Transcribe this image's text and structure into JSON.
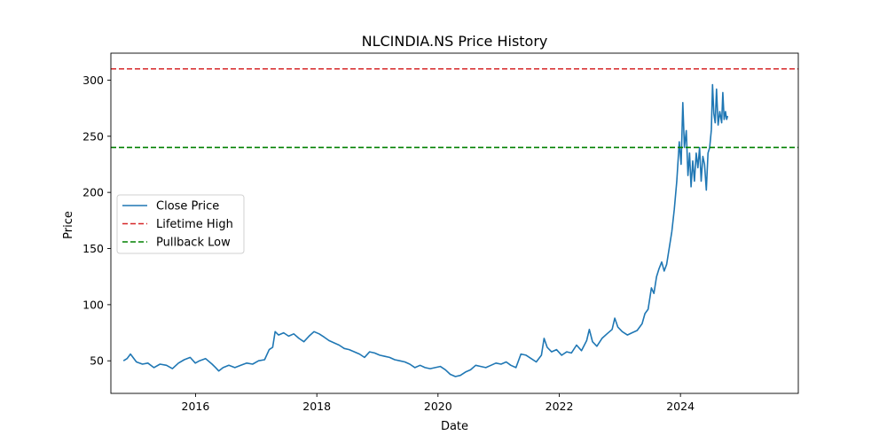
{
  "chart_data": {
    "type": "line",
    "title": "NLCINDIA.NS Price History",
    "xlabel": "Date",
    "ylabel": "Price",
    "xlim": [
      "2014-08-09",
      "2025-12-11"
    ],
    "ylim": [
      21,
      324
    ],
    "x_ticks": [
      "2016",
      "2018",
      "2020",
      "2022",
      "2024"
    ],
    "y_ticks": [
      50,
      100,
      150,
      200,
      250,
      300
    ],
    "grid": false,
    "legend_position": "center-left",
    "series": [
      {
        "name": "Close Price",
        "style": "solid",
        "color": "#1f77b4",
        "points": [
          [
            "2014-10-24",
            50
          ],
          [
            "2014-11-15",
            52
          ],
          [
            "2014-12-05",
            56
          ],
          [
            "2015-01-10",
            49
          ],
          [
            "2015-02-15",
            47
          ],
          [
            "2015-03-20",
            48
          ],
          [
            "2015-04-25",
            44
          ],
          [
            "2015-06-01",
            47
          ],
          [
            "2015-07-10",
            46
          ],
          [
            "2015-08-15",
            43
          ],
          [
            "2015-09-20",
            48
          ],
          [
            "2015-10-25",
            51
          ],
          [
            "2015-11-30",
            53
          ],
          [
            "2015-12-31",
            48
          ],
          [
            "2016-01-25",
            50
          ],
          [
            "2016-03-01",
            52
          ],
          [
            "2016-04-10",
            47
          ],
          [
            "2016-05-01",
            44
          ],
          [
            "2016-05-20",
            41
          ],
          [
            "2016-06-15",
            44
          ],
          [
            "2016-07-20",
            46
          ],
          [
            "2016-08-25",
            44
          ],
          [
            "2016-09-30",
            46
          ],
          [
            "2016-11-05",
            48
          ],
          [
            "2016-12-10",
            47
          ],
          [
            "2017-01-15",
            50
          ],
          [
            "2017-02-20",
            51
          ],
          [
            "2017-03-20",
            60
          ],
          [
            "2017-04-10",
            62
          ],
          [
            "2017-04-25",
            76
          ],
          [
            "2017-05-15",
            73
          ],
          [
            "2017-06-15",
            75
          ],
          [
            "2017-07-15",
            72
          ],
          [
            "2017-08-15",
            74
          ],
          [
            "2017-09-15",
            70
          ],
          [
            "2017-10-15",
            67
          ],
          [
            "2017-11-15",
            72
          ],
          [
            "2017-12-15",
            76
          ],
          [
            "2018-01-15",
            74
          ],
          [
            "2018-02-15",
            71
          ],
          [
            "2018-03-15",
            68
          ],
          [
            "2018-04-15",
            66
          ],
          [
            "2018-05-15",
            64
          ],
          [
            "2018-06-15",
            61
          ],
          [
            "2018-07-15",
            60
          ],
          [
            "2018-08-15",
            58
          ],
          [
            "2018-09-15",
            56
          ],
          [
            "2018-10-15",
            53
          ],
          [
            "2018-11-15",
            58
          ],
          [
            "2018-12-15",
            57
          ],
          [
            "2019-01-15",
            55
          ],
          [
            "2019-02-15",
            54
          ],
          [
            "2019-03-15",
            53
          ],
          [
            "2019-04-15",
            51
          ],
          [
            "2019-05-15",
            50
          ],
          [
            "2019-06-15",
            49
          ],
          [
            "2019-07-15",
            47
          ],
          [
            "2019-08-15",
            44
          ],
          [
            "2019-09-15",
            46
          ],
          [
            "2019-10-15",
            44
          ],
          [
            "2019-11-15",
            43
          ],
          [
            "2019-12-15",
            44
          ],
          [
            "2020-01-15",
            45
          ],
          [
            "2020-02-15",
            42
          ],
          [
            "2020-03-15",
            38
          ],
          [
            "2020-04-15",
            36
          ],
          [
            "2020-05-15",
            37
          ],
          [
            "2020-06-15",
            40
          ],
          [
            "2020-07-15",
            42
          ],
          [
            "2020-08-15",
            46
          ],
          [
            "2020-09-15",
            45
          ],
          [
            "2020-10-15",
            44
          ],
          [
            "2020-11-15",
            46
          ],
          [
            "2020-12-15",
            48
          ],
          [
            "2021-01-15",
            47
          ],
          [
            "2021-02-15",
            49
          ],
          [
            "2021-03-15",
            46
          ],
          [
            "2021-04-15",
            44
          ],
          [
            "2021-05-15",
            56
          ],
          [
            "2021-06-15",
            55
          ],
          [
            "2021-07-15",
            52
          ],
          [
            "2021-08-15",
            49
          ],
          [
            "2021-09-15",
            55
          ],
          [
            "2021-10-01",
            70
          ],
          [
            "2021-10-20",
            62
          ],
          [
            "2021-11-15",
            58
          ],
          [
            "2021-12-15",
            60
          ],
          [
            "2022-01-15",
            55
          ],
          [
            "2022-02-15",
            58
          ],
          [
            "2022-03-15",
            57
          ],
          [
            "2022-04-15",
            64
          ],
          [
            "2022-05-15",
            59
          ],
          [
            "2022-06-15",
            68
          ],
          [
            "2022-07-01",
            78
          ],
          [
            "2022-07-20",
            67
          ],
          [
            "2022-08-15",
            63
          ],
          [
            "2022-09-15",
            70
          ],
          [
            "2022-10-15",
            74
          ],
          [
            "2022-11-15",
            78
          ],
          [
            "2022-12-01",
            88
          ],
          [
            "2022-12-20",
            80
          ],
          [
            "2023-01-15",
            76
          ],
          [
            "2023-02-15",
            73
          ],
          [
            "2023-03-15",
            75
          ],
          [
            "2023-04-15",
            77
          ],
          [
            "2023-05-15",
            83
          ],
          [
            "2023-06-01",
            92
          ],
          [
            "2023-06-20",
            96
          ],
          [
            "2023-07-10",
            115
          ],
          [
            "2023-07-25",
            110
          ],
          [
            "2023-08-10",
            125
          ],
          [
            "2023-08-25",
            132
          ],
          [
            "2023-09-10",
            138
          ],
          [
            "2023-09-25",
            130
          ],
          [
            "2023-10-10",
            136
          ],
          [
            "2023-10-25",
            150
          ],
          [
            "2023-11-10",
            165
          ],
          [
            "2023-11-25",
            185
          ],
          [
            "2023-12-10",
            210
          ],
          [
            "2023-12-25",
            245
          ],
          [
            "2024-01-05",
            225
          ],
          [
            "2024-01-15",
            280
          ],
          [
            "2024-01-25",
            240
          ],
          [
            "2024-02-05",
            255
          ],
          [
            "2024-02-15",
            215
          ],
          [
            "2024-02-25",
            235
          ],
          [
            "2024-03-05",
            205
          ],
          [
            "2024-03-15",
            228
          ],
          [
            "2024-03-25",
            210
          ],
          [
            "2024-04-05",
            235
          ],
          [
            "2024-04-15",
            222
          ],
          [
            "2024-04-25",
            240
          ],
          [
            "2024-05-05",
            210
          ],
          [
            "2024-05-15",
            232
          ],
          [
            "2024-05-25",
            225
          ],
          [
            "2024-06-05",
            202
          ],
          [
            "2024-06-15",
            235
          ],
          [
            "2024-06-25",
            240
          ],
          [
            "2024-07-05",
            256
          ],
          [
            "2024-07-12",
            296
          ],
          [
            "2024-07-20",
            270
          ],
          [
            "2024-07-28",
            262
          ],
          [
            "2024-08-05",
            292
          ],
          [
            "2024-08-15",
            260
          ],
          [
            "2024-08-25",
            272
          ],
          [
            "2024-09-05",
            262
          ],
          [
            "2024-09-12",
            289
          ],
          [
            "2024-09-20",
            265
          ],
          [
            "2024-09-28",
            272
          ],
          [
            "2024-10-05",
            265
          ],
          [
            "2024-10-11",
            268
          ]
        ]
      },
      {
        "name": "Lifetime High",
        "style": "dashed",
        "color": "#d62728",
        "y": 310
      },
      {
        "name": "Pullback Low",
        "style": "dashed",
        "color": "#008000",
        "y": 240
      }
    ]
  }
}
